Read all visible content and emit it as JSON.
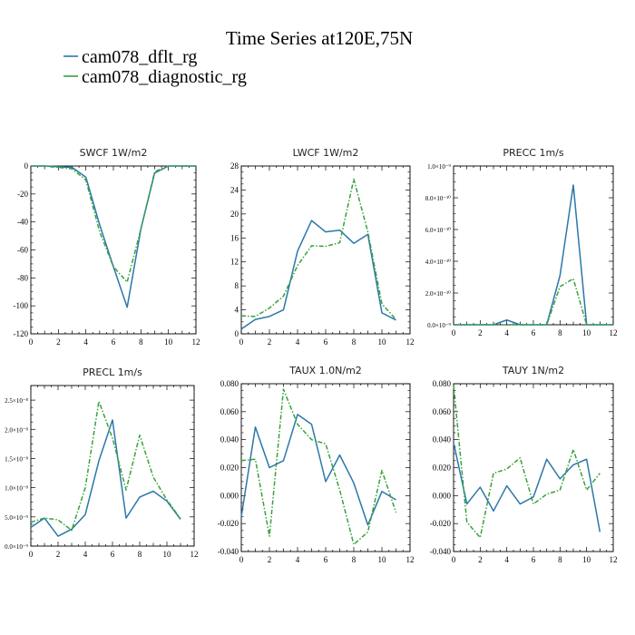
{
  "title": "Time Series at120E,75N",
  "colors": {
    "s1": "#2b77ab",
    "s2": "#37a23b"
  },
  "legend": [
    {
      "label": "cam078_dflt_rg",
      "color": "#2b77ab",
      "dash": "solid"
    },
    {
      "label": "cam078_diagnostic_rg",
      "color": "#37a23b",
      "dash": "dashed"
    }
  ],
  "chart_data": [
    {
      "type": "line",
      "title": "SWCF   1W/m2",
      "x": [
        0,
        1,
        2,
        3,
        4,
        5,
        6,
        7,
        8,
        9,
        10,
        11,
        12
      ],
      "xlim": [
        0,
        12
      ],
      "xticks": [
        0,
        2,
        4,
        6,
        8,
        10,
        12
      ],
      "xtick_labels": [
        "0",
        "2",
        "4",
        "6",
        "8",
        "10",
        "12"
      ],
      "ylim": [
        -120,
        0
      ],
      "yticks": [
        -120,
        -100,
        -80,
        -60,
        -40,
        -20,
        0
      ],
      "ytick_labels": [
        "-120",
        "-100",
        "-80",
        "-60",
        "-40",
        "-20",
        "0"
      ],
      "series": [
        {
          "name": "cam078_dflt_rg",
          "values": [
            0,
            0,
            -0.5,
            -1,
            -8,
            -42,
            -72,
            -101,
            -45,
            -5,
            0,
            0,
            0
          ]
        },
        {
          "name": "cam078_diagnostic_rg",
          "values": [
            0,
            0,
            -1,
            -2,
            -10,
            -47,
            -72,
            -83,
            -45,
            -4,
            0,
            0,
            0
          ]
        }
      ]
    },
    {
      "type": "line",
      "title": "LWCF   1W/m2",
      "x": [
        0,
        1,
        2,
        3,
        4,
        5,
        6,
        7,
        8,
        9,
        10,
        11
      ],
      "xlim": [
        0,
        12
      ],
      "xticks": [
        0,
        2,
        4,
        6,
        8,
        10,
        12
      ],
      "xtick_labels": [
        "0",
        "2",
        "4",
        "6",
        "8",
        "10",
        "12"
      ],
      "ylim": [
        0,
        28
      ],
      "yticks": [
        0,
        4,
        8,
        12,
        16,
        20,
        24,
        28
      ],
      "ytick_labels": [
        "0",
        "4",
        "8",
        "12",
        "16",
        "20",
        "24",
        "28"
      ],
      "series": [
        {
          "name": "cam078_dflt_rg",
          "values": [
            0.8,
            2.4,
            2.9,
            4,
            13.8,
            18.9,
            17,
            17.3,
            15.1,
            16.6,
            3.5,
            2.3
          ]
        },
        {
          "name": "cam078_diagnostic_rg",
          "values": [
            3,
            2.9,
            4.3,
            6.3,
            11.4,
            14.7,
            14.6,
            15.2,
            25.8,
            17,
            5,
            2.4
          ]
        }
      ]
    },
    {
      "type": "line",
      "title": "PRECC   1m/s",
      "x": [
        0,
        1,
        2,
        3,
        4,
        5,
        6,
        7,
        8,
        9,
        10,
        11,
        12
      ],
      "xlim": [
        0,
        12
      ],
      "xticks": [
        0,
        2,
        4,
        6,
        8,
        10,
        12
      ],
      "xtick_labels": [
        "0",
        "2",
        "4",
        "6",
        "8",
        "10",
        "12"
      ],
      "ylim": [
        0,
        1e-09
      ],
      "yticks": [
        0,
        2e-10,
        4e-10,
        6e-10,
        8e-10,
        1e-09
      ],
      "ytick_labels": [
        "0.0×10⁻⁹",
        "2.0×10⁻¹⁰",
        "4.0×10⁻¹⁰",
        "6.0×10⁻¹⁰",
        "8.0×10⁻¹⁰",
        "1.0×10⁻⁹"
      ],
      "series": [
        {
          "name": "cam078_dflt_rg",
          "values": [
            0,
            0,
            0,
            0,
            3e-11,
            0,
            0,
            0,
            3.1e-10,
            8.8e-10,
            0,
            0,
            0
          ]
        },
        {
          "name": "cam078_diagnostic_rg",
          "values": [
            0,
            0,
            0,
            0,
            0,
            0,
            0,
            0,
            2.4e-10,
            2.9e-10,
            0,
            0,
            0
          ]
        }
      ]
    },
    {
      "type": "line",
      "title": "PRECL   1m/s",
      "x": [
        0,
        1,
        2,
        3,
        4,
        5,
        6,
        7,
        8,
        9,
        10,
        11
      ],
      "xlim": [
        0,
        12
      ],
      "xticks": [
        0,
        2,
        4,
        6,
        8,
        10,
        12
      ],
      "xtick_labels": [
        "0",
        "2",
        "4",
        "6",
        "8",
        "10",
        "12"
      ],
      "ylim": [
        0,
        2.75e-08
      ],
      "yticks": [
        0,
        5e-09,
        1e-08,
        1.5e-08,
        2e-08,
        2.5e-08
      ],
      "ytick_labels": [
        "0.0×10⁻⁹",
        "5.0×10⁻⁹",
        "1.0×10⁻⁸",
        "1.5×10⁻⁸",
        "2.0×10⁻⁸",
        "2.5×10⁻⁸"
      ],
      "series": [
        {
          "name": "cam078_dflt_rg",
          "values": [
            3.2e-09,
            4.8e-09,
            1.7e-09,
            2.9e-09,
            5.4e-09,
            1.46e-08,
            2.16e-08,
            4.8e-09,
            8.4e-09,
            9.4e-09,
            7.7e-09,
            4.6e-09
          ]
        },
        {
          "name": "cam078_diagnostic_rg",
          "values": [
            4.1e-09,
            4.8e-09,
            4.5e-09,
            2.7e-09,
            1e-08,
            2.48e-08,
            1.85e-08,
            9.6e-09,
            1.9e-08,
            1.18e-08,
            7.9e-09,
            4.7e-09
          ]
        }
      ]
    },
    {
      "type": "line",
      "title": "TAUX   1.0N/m2",
      "x": [
        0,
        1,
        2,
        3,
        4,
        5,
        6,
        7,
        8,
        9,
        10,
        11
      ],
      "xlim": [
        0,
        12
      ],
      "xticks": [
        0,
        2,
        4,
        6,
        8,
        10,
        12
      ],
      "xtick_labels": [
        "0",
        "2",
        "4",
        "6",
        "8",
        "10",
        "12"
      ],
      "ylim": [
        -0.04,
        0.08
      ],
      "yticks": [
        -0.04,
        -0.02,
        0,
        0.02,
        0.04,
        0.06,
        0.08
      ],
      "ytick_labels": [
        "-0.040",
        "-0.020",
        "0.000",
        "0.020",
        "0.040",
        "0.060",
        "0.080"
      ],
      "series": [
        {
          "name": "cam078_dflt_rg",
          "values": [
            -0.015,
            0.049,
            0.02,
            0.025,
            0.058,
            0.051,
            0.01,
            0.029,
            0.009,
            -0.021,
            0.003,
            -0.003
          ]
        },
        {
          "name": "cam078_diagnostic_rg",
          "values": [
            0.025,
            0.026,
            -0.029,
            0.076,
            0.051,
            0.04,
            0.037,
            0.004,
            -0.035,
            -0.026,
            0.018,
            -0.012
          ]
        }
      ]
    },
    {
      "type": "line",
      "title": "TAUY   1N/m2",
      "x": [
        0,
        1,
        2,
        3,
        4,
        5,
        6,
        7,
        8,
        9,
        10,
        11
      ],
      "xlim": [
        0,
        12
      ],
      "xticks": [
        0,
        2,
        4,
        6,
        8,
        10,
        12
      ],
      "xtick_labels": [
        "0",
        "2",
        "4",
        "6",
        "8",
        "10",
        "12"
      ],
      "ylim": [
        -0.04,
        0.08
      ],
      "yticks": [
        -0.04,
        -0.02,
        0,
        0.02,
        0.04,
        0.06,
        0.08
      ],
      "ytick_labels": [
        "-0.040",
        "-0.020",
        "0.000",
        "0.020",
        "0.040",
        "0.060",
        "0.080"
      ],
      "series": [
        {
          "name": "cam078_dflt_rg",
          "values": [
            0.038,
            -0.006,
            0.006,
            -0.011,
            0.007,
            -0.006,
            -0.001,
            0.026,
            0.012,
            0.022,
            0.026,
            -0.026
          ]
        },
        {
          "name": "cam078_diagnostic_rg",
          "values": [
            0.079,
            -0.019,
            -0.03,
            0.016,
            0.019,
            0.027,
            -0.006,
            0.001,
            0.004,
            0.033,
            0.004,
            0.016
          ]
        }
      ]
    }
  ]
}
